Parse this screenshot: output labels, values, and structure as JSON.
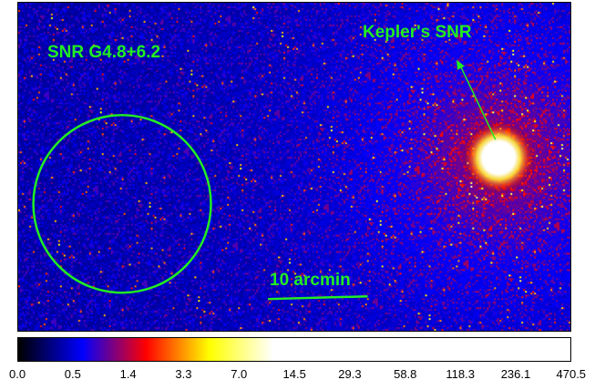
{
  "image": {
    "labels": {
      "snr_left": "SNR G4.8+6.2",
      "kepler": "Kepler's SNR",
      "scale_bar": "10 arcmin"
    },
    "colors": {
      "annotation": "#22ee22",
      "background": "#0a0a25"
    }
  },
  "colorbar": {
    "ticks": [
      "0.0",
      "0.5",
      "1.4",
      "3.3",
      "7.0",
      "14.5",
      "29.3",
      "58.8",
      "118.3",
      "236.1",
      "470.5"
    ],
    "colormap": [
      "#000000",
      "#0000ff",
      "#ff0000",
      "#ffff00",
      "#ffffff"
    ]
  }
}
